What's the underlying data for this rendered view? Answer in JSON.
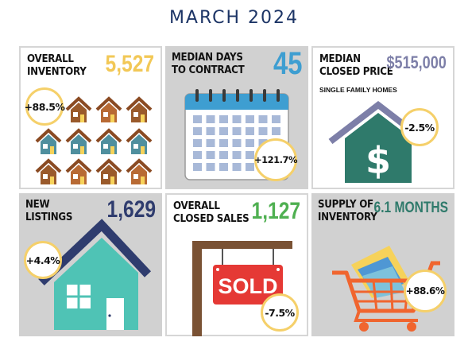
{
  "header": {
    "title": "MARCH 2024"
  },
  "tiles": {
    "inventory": {
      "label_line1": "OVERALL",
      "label_line2": "INVENTORY",
      "value": "5,527",
      "value_color": "#f2c857",
      "change": "+88.5%"
    },
    "days": {
      "label_line1": "MEDIAN DAYS",
      "label_line2": "TO CONTRACT",
      "value": "45",
      "value_color": "#3e9ed1",
      "change": "+121.7%"
    },
    "price": {
      "label_line1": "MEDIAN",
      "label_line2": "CLOSED PRICE",
      "sublabel": "SINGLE FAMILY HOMES",
      "value": "$515,000",
      "value_color": "#7d7fa8",
      "change": "-2.5%"
    },
    "listings": {
      "label_line1": "NEW",
      "label_line2": "LISTINGS",
      "value": "1,629",
      "value_color": "#2f3c6e",
      "change": "+4.4%"
    },
    "sales": {
      "label_line1": "OVERALL",
      "label_line2": "CLOSED SALES",
      "value": "1,127",
      "value_color": "#4fb051",
      "change": "-7.5%",
      "sign_text": "SOLD"
    },
    "supply": {
      "label_line1": "SUPPLY OF",
      "label_line2": "INVENTORY",
      "value": "6.1 MONTHS",
      "value_color": "#2f7a6b",
      "change": "+88.6%"
    }
  },
  "icons": [
    "house-grid-icon",
    "calendar-icon",
    "dollar-house-icon",
    "house-icon",
    "sold-sign-icon",
    "shopping-cart-icon"
  ]
}
